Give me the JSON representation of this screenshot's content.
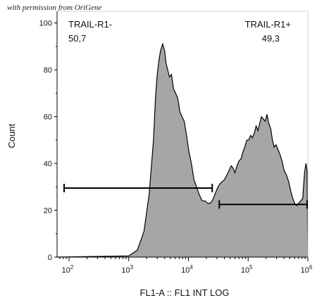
{
  "watermark": "with permission from OriGene",
  "chart_data": {
    "type": "area",
    "xlabel": "FL1-A :: FL1 INT LOG",
    "ylabel": "Count",
    "xscale": "log",
    "xlim": [
      63,
      1000000
    ],
    "ylim": [
      0,
      105
    ],
    "x_tick_exponents": [
      2,
      3,
      4,
      5,
      6
    ],
    "y_ticks": [
      0,
      20,
      40,
      60,
      80,
      100
    ],
    "fill_color": "#a6a6a6",
    "line_color": "#000000",
    "series": [
      {
        "x": [
          63,
          1000,
          1400,
          1800,
          2200,
          2600,
          2800,
          3000,
          3200,
          3400,
          3700,
          4000,
          4200,
          4500,
          4800,
          5200,
          5600,
          6100,
          6600,
          7200,
          7800,
          8500,
          9300,
          10200,
          11200,
          12400,
          13700,
          15000,
          17000,
          19000,
          21000,
          23000,
          25000,
          27000,
          30000,
          33000,
          36000,
          40000,
          44000,
          48000,
          52000,
          56000,
          60000,
          65000,
          70000,
          76000,
          82000,
          88000,
          95000,
          102000,
          110000,
          118000,
          127000,
          136000,
          146000,
          156000,
          167000,
          180000,
          193000,
          207000,
          222000,
          238000,
          255000,
          273000,
          293000,
          316000,
          340000,
          370000,
          400000,
          440000,
          480000,
          520000,
          560000,
          600000,
          650000,
          700000,
          760000,
          820000,
          880000,
          930000,
          970000,
          1000000
        ],
        "y": [
          0,
          0.5,
          3,
          11,
          27,
          50,
          68,
          78,
          84,
          88,
          91,
          88,
          83,
          80,
          77,
          78,
          72,
          70,
          68,
          62,
          60,
          58,
          52,
          45,
          40,
          33,
          30,
          27,
          24,
          24,
          23,
          23,
          24,
          26,
          29,
          31,
          32,
          33,
          35,
          37,
          39,
          38,
          36,
          39,
          41,
          42,
          45,
          47,
          50,
          50,
          52,
          51,
          53,
          56,
          54,
          57,
          60,
          59,
          58,
          61,
          57,
          55,
          50,
          47,
          48,
          46,
          44,
          41,
          37,
          35,
          32,
          28,
          25,
          23,
          22,
          23,
          24,
          25,
          36,
          40,
          37,
          0
        ]
      }
    ],
    "gates": [
      {
        "label": "TRAIL-R1-",
        "percent": "50,7",
        "x_start": 63,
        "x_end": 25000,
        "y": 29.5
      },
      {
        "label": "TRAIL-R1+",
        "percent": "49,3",
        "x_start": 25000,
        "x_end": 1000000,
        "y": 22.5
      }
    ]
  }
}
